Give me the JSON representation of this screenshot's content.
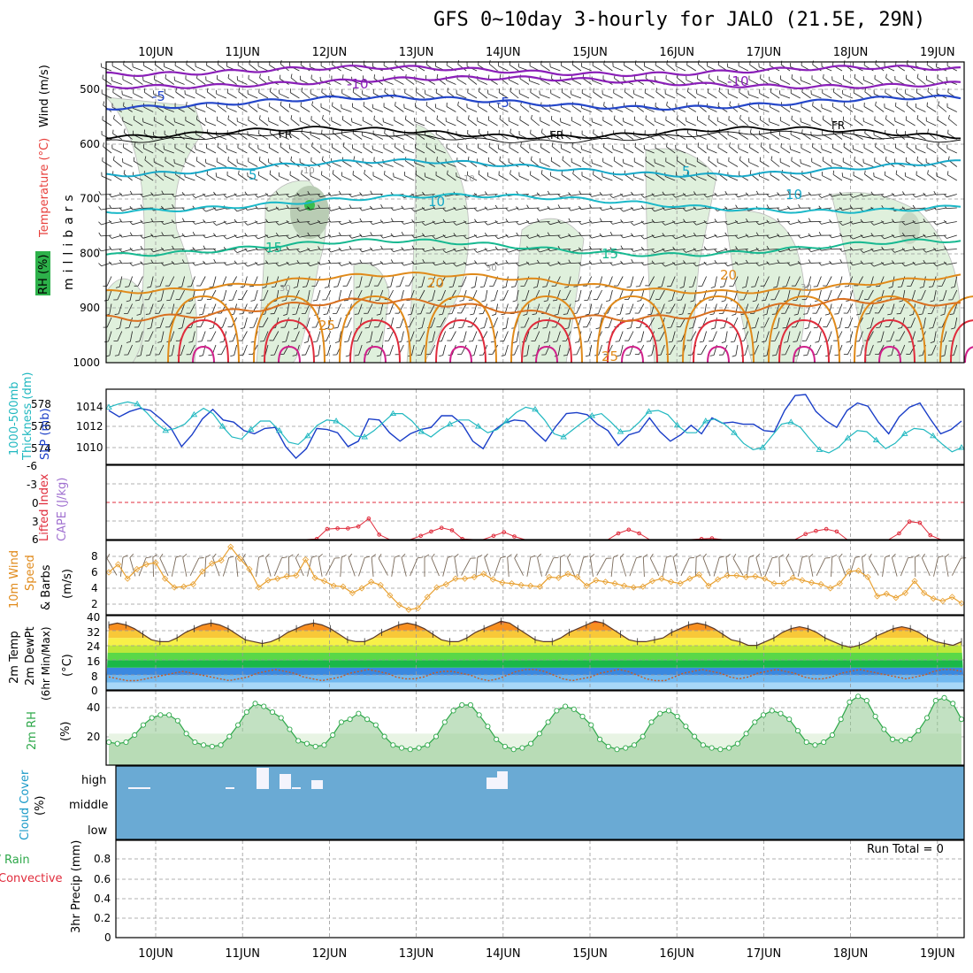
{
  "title": "GFS 0~10day 3-hourly for JALO (21.5E, 29N)",
  "dates": [
    "10JUN",
    "11JUN",
    "12JUN",
    "13JUN",
    "14JUN",
    "15JUN",
    "16JUN",
    "17JUN",
    "18JUN",
    "19JUN"
  ],
  "colors": {
    "purple": "#8a1fb8",
    "blue": "#2446c9",
    "cyan": "#17a8c8",
    "teal": "#16b890",
    "orange": "#e08a1a",
    "red": "#e02c3c",
    "green": "#2ea84a",
    "rh_fill": "#dff0dc",
    "cloud": "#6aaad4",
    "slp": "#1a3ec8",
    "thick": "#20b8c0"
  },
  "panels": {
    "upper": {
      "labels": {
        "rh": "RH (%)",
        "temp": "Temperature (°C)",
        "wind": "Wind (m/s)",
        "mb": "millibars"
      },
      "levels": [
        "500",
        "600",
        "700",
        "800",
        "900",
        "1000"
      ],
      "contour_labels": {
        "m10a": "-10",
        "m10b": "-10",
        "m5a": "-5",
        "m5b": "-5",
        "fr1": "FR",
        "fr2": "FR",
        "fr3": "FR",
        "p5a": "5",
        "p5b": "5",
        "p10a": "10",
        "p10b": "10",
        "p15a": "15",
        "p15b": "15",
        "p20a": "20",
        "p20b": "20",
        "p25a": "25",
        "p25b": "25",
        "r10a": "10",
        "r10b": "10",
        "r30a": "30",
        "r30b": "30",
        "r30c": "30"
      }
    },
    "slp": {
      "label_thick": "1000-500mb",
      "label_thick2": "Thickness (dm)",
      "label_slp": "SLP (mb)",
      "left_ticks": [
        "578",
        "576",
        "574"
      ],
      "right_ticks": [
        "1014",
        "1012",
        "1010"
      ]
    },
    "cape": {
      "label_li": "Lifted Index",
      "label_cape": "CAPE (J/kg)",
      "ticks": [
        "-6",
        "-3",
        "0",
        "3",
        "6"
      ]
    },
    "wind10": {
      "label1": "10m Wind",
      "label2": "Speed",
      "label3": "& Barbs",
      "unit": "(m/s)",
      "ticks": [
        "8",
        "6",
        "4",
        "2"
      ]
    },
    "temp2m": {
      "label1": "2m Temp",
      "label2": "2m DewPt",
      "label3": "(6hr Min/Max)",
      "unit": "(°C)",
      "ticks": [
        "40",
        "32",
        "24",
        "16",
        "8",
        "0"
      ]
    },
    "rh2m": {
      "label": "2m RH",
      "unit": "(%)",
      "ticks": [
        "40",
        "20"
      ]
    },
    "cloud": {
      "label": "Cloud Cover",
      "unit": "(%)",
      "levels": [
        "high",
        "middle",
        "low"
      ]
    },
    "precip": {
      "label1": "Total / Rain",
      "label2": "Convective",
      "label3": "3hr Precip (mm)",
      "ticks": [
        "0.8",
        "0.6",
        "0.4",
        "0.2",
        "0"
      ],
      "run_total": "Run Total = 0"
    }
  },
  "chart_data": [
    {
      "type": "line",
      "title": "1000-500mb Thickness (dm) / SLP (mb)",
      "series": [
        {
          "name": "SLP (mb)",
          "values": [
            1013.5,
            1012.9,
            1013.4,
            1013.7,
            1013.5,
            1012.7,
            1011.8,
            1010.1,
            1011.2,
            1012.7,
            1013.6,
            1012.6,
            1012.4,
            1011.6,
            1011.3,
            1011.8,
            1011.9,
            1010.1,
            1009.0,
            1009.9,
            1011.8,
            1011.7,
            1011.4,
            1010.1,
            1010.6,
            1012.7,
            1012.6,
            1011.4,
            1010.6,
            1011.3,
            1011.7,
            1011.9,
            1013.0,
            1013.0,
            1012.2,
            1010.6,
            1009.9,
            1011.6,
            1012.3,
            1012.6,
            1012.5,
            1011.5,
            1010.6,
            1012.0,
            1013.2,
            1013.3,
            1013.1,
            1012.2,
            1011.6,
            1010.2,
            1011.2,
            1011.5,
            1012.8,
            1011.5,
            1010.6,
            1011.2,
            1012.1,
            1011.3,
            1012.8,
            1012.3,
            1012.4,
            1012.2,
            1012.2,
            1011.6,
            1011.5,
            1013.5,
            1014.9,
            1015.0,
            1013.4,
            1012.5,
            1011.9,
            1013.5,
            1014.2,
            1013.9,
            1012.4,
            1011.3,
            1012.9,
            1013.8,
            1014.2,
            1012.7,
            1011.3,
            1011.7,
            1012.5
          ]
        },
        {
          "name": "1000-500mb Thickness (dm)",
          "values": [
            577.8,
            578.1,
            578.3,
            578.1,
            577.3,
            576.3,
            575.6,
            575.8,
            576.2,
            577.1,
            577.7,
            577.2,
            576.0,
            575.0,
            574.8,
            575.7,
            576.5,
            576.5,
            575.6,
            574.5,
            574.3,
            575.1,
            576.1,
            576.6,
            576.5,
            575.9,
            575.1,
            575.0,
            575.6,
            576.4,
            577.2,
            577.2,
            576.5,
            575.5,
            575.0,
            575.7,
            576.2,
            576.6,
            576.6,
            576.0,
            575.4,
            575.7,
            576.5,
            577.3,
            577.8,
            577.6,
            576.6,
            575.3,
            575.0,
            575.7,
            576.4,
            577.0,
            577.2,
            576.4,
            575.5,
            575.6,
            576.4,
            577.4,
            577.5,
            577.1,
            576.1,
            575.4,
            575.4,
            576.5,
            576.7,
            576.2,
            575.4,
            574.4,
            573.8,
            574.0,
            575.1,
            576.2,
            576.4,
            575.9,
            574.8,
            573.8,
            573.5,
            574.0,
            574.9,
            575.6,
            575.5,
            574.7,
            573.9,
            574.4,
            575.3,
            575.8,
            575.7,
            575.1,
            574.3,
            573.6,
            574.0
          ]
        }
      ]
    },
    {
      "type": "line",
      "title": "Lifted Index / CAPE (J/kg)",
      "ylim": [
        -6,
        6
      ],
      "series": [
        {
          "name": "Lifted Index",
          "values": [
            6,
            6,
            6,
            6,
            6,
            6,
            6,
            6,
            6,
            6,
            6,
            6,
            6,
            6,
            6,
            6,
            6,
            6,
            6,
            6,
            5.9,
            4.3,
            4.2,
            4.2,
            3.9,
            2.6,
            5.2,
            6,
            6,
            6,
            5.4,
            4.7,
            4.1,
            4.5,
            5.9,
            6,
            6,
            5.4,
            4.8,
            5.5,
            6,
            6,
            6,
            6,
            6,
            6,
            6,
            6,
            6,
            5.0,
            4.4,
            5.0,
            6,
            6,
            6,
            6,
            6,
            5.9,
            5.8,
            6,
            6,
            6,
            6,
            6,
            6,
            6,
            6,
            5.1,
            4.6,
            4.3,
            4.7,
            6,
            6,
            6,
            6,
            6,
            5.0,
            3.1,
            3.3,
            5.3,
            6,
            6,
            6
          ]
        }
      ]
    },
    {
      "type": "line",
      "title": "10m Wind Speed & Barbs (m/s)",
      "ylim": [
        1,
        9
      ],
      "series": [
        {
          "name": "10m Wind Speed",
          "values": [
            6.0,
            7.0,
            5.2,
            6.4,
            7.0,
            7.2,
            5.2,
            4.1,
            4.2,
            4.5,
            6.1,
            7.1,
            7.5,
            9.2,
            7.7,
            6.4,
            4.1,
            5.0,
            5.2,
            5.5,
            5.6,
            7.6,
            5.3,
            4.9,
            4.3,
            4.2,
            3.4,
            4.0,
            4.8,
            4.4,
            3.1,
            1.9,
            1.3,
            1.5,
            2.9,
            4.1,
            4.5,
            5.2,
            5.2,
            5.4,
            5.8,
            5.1,
            4.7,
            4.6,
            4.4,
            4.3,
            4.2,
            5.4,
            5.3,
            5.8,
            5.4,
            4.3,
            5.0,
            4.8,
            4.6,
            4.3,
            4.1,
            4.2,
            4.9,
            5.2,
            4.8,
            4.6,
            5.2,
            5.7,
            4.3,
            5.1,
            5.6,
            5.6,
            5.4,
            5.5,
            5.2,
            4.6,
            4.6,
            5.3,
            5.0,
            4.7,
            4.5,
            4.0,
            4.6,
            6.1,
            6.2,
            5.4,
            3.0,
            3.3,
            2.8,
            3.4,
            4.9,
            3.4,
            2.7,
            2.4,
            2.9,
            2.1
          ]
        }
      ]
    },
    {
      "type": "area",
      "title": "2m Temp / 2m DewPt (6hr Min/Max) (°C)",
      "ylim": [
        0,
        40
      ],
      "series": [
        {
          "name": "2m Temp",
          "values": [
            35,
            36,
            35,
            33,
            30,
            27,
            26,
            26,
            28,
            31,
            33,
            35,
            36,
            35,
            33,
            30,
            27,
            26,
            25,
            26,
            28,
            31,
            33,
            35,
            36,
            35,
            33,
            30,
            27,
            26,
            26,
            28,
            31,
            33,
            35,
            36,
            35,
            33,
            30,
            27,
            26,
            26,
            28,
            31,
            33,
            35,
            37,
            36,
            33,
            30,
            27,
            26,
            26,
            28,
            31,
            33,
            35,
            37,
            36,
            33,
            30,
            27,
            26,
            26,
            27,
            28,
            31,
            33,
            35,
            36,
            35,
            33,
            30,
            27,
            26,
            24,
            24,
            26,
            28,
            31,
            33,
            34,
            33,
            31,
            28,
            26,
            24,
            23,
            24,
            26,
            29,
            31,
            33,
            34,
            33,
            31,
            28,
            26,
            25,
            24,
            26
          ]
        },
        {
          "name": "2m DewPt",
          "values": [
            7,
            6,
            5,
            5,
            6,
            7,
            8,
            9,
            10,
            9,
            8,
            7,
            6,
            5,
            6,
            7,
            9,
            10,
            11,
            10,
            9,
            7,
            6,
            5,
            6,
            7,
            9,
            10,
            11,
            10,
            9,
            7,
            6,
            6,
            7,
            9,
            10,
            10,
            9,
            8,
            6,
            5,
            6,
            8,
            10,
            11,
            11,
            10,
            8,
            6,
            5,
            6,
            7,
            9,
            10,
            11,
            10,
            8,
            6,
            5,
            5,
            7,
            9,
            10,
            11,
            10,
            9,
            7,
            6,
            7,
            9,
            10,
            11,
            10,
            9,
            7,
            6,
            6,
            7,
            9,
            10,
            11,
            10,
            9,
            8,
            7,
            6,
            7,
            8,
            10,
            11,
            11,
            10
          ]
        }
      ]
    },
    {
      "type": "area",
      "title": "2m RH (%)",
      "ylim": [
        0,
        52
      ],
      "series": [
        {
          "name": "2m RH",
          "values": [
            16,
            15,
            16,
            21,
            28,
            33,
            35,
            35,
            31,
            22,
            16,
            14,
            13,
            14,
            20,
            28,
            37,
            43,
            41,
            37,
            33,
            25,
            17,
            15,
            13,
            14,
            21,
            30,
            32,
            36,
            32,
            28,
            20,
            14,
            12,
            11,
            12,
            14,
            20,
            30,
            38,
            42,
            42,
            35,
            27,
            18,
            13,
            11,
            12,
            15,
            22,
            30,
            38,
            41,
            39,
            34,
            28,
            18,
            13,
            11,
            12,
            14,
            20,
            30,
            36,
            38,
            34,
            27,
            20,
            14,
            12,
            11,
            12,
            15,
            22,
            30,
            35,
            38,
            36,
            32,
            24,
            16,
            14,
            16,
            21,
            32,
            44,
            48,
            45,
            34,
            25,
            18,
            17,
            18,
            24,
            33,
            45,
            47,
            43,
            32
          ]
        }
      ]
    },
    {
      "type": "bar",
      "title": "Cloud Cover (%)",
      "series": [
        {
          "name": "high",
          "values": [
            0,
            10,
            10,
            0,
            0,
            0,
            0,
            0,
            0,
            0,
            0,
            0,
            5,
            0,
            0,
            25,
            20,
            5,
            10,
            0,
            0,
            0,
            0,
            0,
            0,
            0,
            0,
            0,
            0,
            10,
            25,
            0,
            0
          ]
        }
      ]
    },
    {
      "type": "line",
      "title": "3hr Precip (mm)",
      "ylim": [
        0,
        1
      ],
      "series": [
        {
          "name": "Total / Rain",
          "values": [
            0,
            0,
            0,
            0,
            0,
            0,
            0,
            0,
            0,
            0
          ]
        }
      ]
    }
  ]
}
